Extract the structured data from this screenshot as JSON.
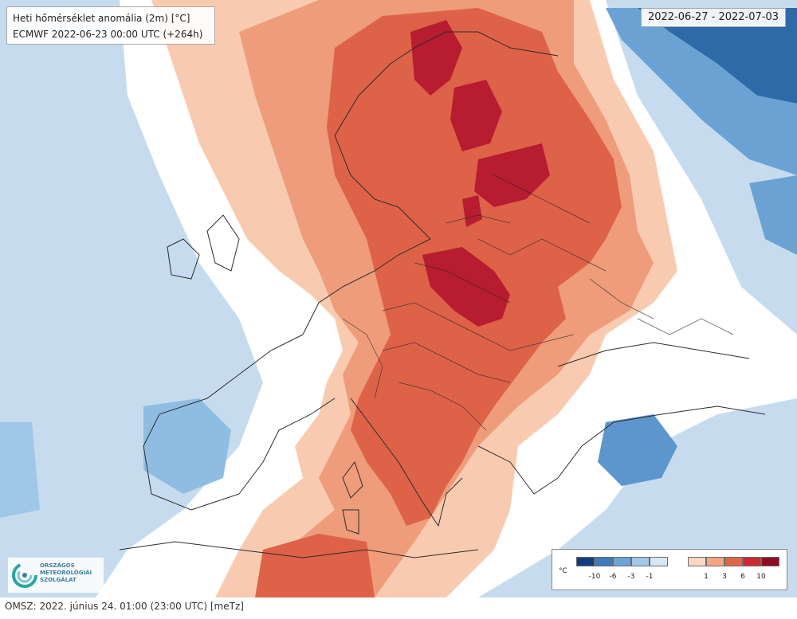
{
  "map": {
    "title": "Heti hőmérséklet anomália (2m) [°C]",
    "model_run": "ECMWF 2022-06-23 00:00 UTC (+264h)",
    "valid_period": "2022-06-27 - 2022-07-03",
    "logo": {
      "line1": "ORSZÁGOS",
      "line2": "METEOROLÓGIAI",
      "line3": "SZOLGÁLAT"
    },
    "legend": {
      "unit": "°C",
      "cold_labels": [
        "-10",
        "-6",
        "-3",
        "-1"
      ],
      "warm_labels": [
        "1",
        "3",
        "6",
        "10"
      ],
      "cold_colors": [
        "#0d3f7e",
        "#3d7bbb",
        "#6aa5d6",
        "#9fc7e7",
        "#d6e8f5"
      ],
      "warm_colors": [
        "#fbd7c2",
        "#f4a582",
        "#e26646",
        "#c9292f",
        "#8e0d24"
      ]
    },
    "palette": {
      "background_anomaly": "#bed9ee",
      "zero_band": "#ffffff",
      "coastlines": "#2b2b2b"
    }
  },
  "footer": {
    "text": "OMSZ: 2022. június 24. 01:00 (23:00  UTC)  [meTz]"
  }
}
